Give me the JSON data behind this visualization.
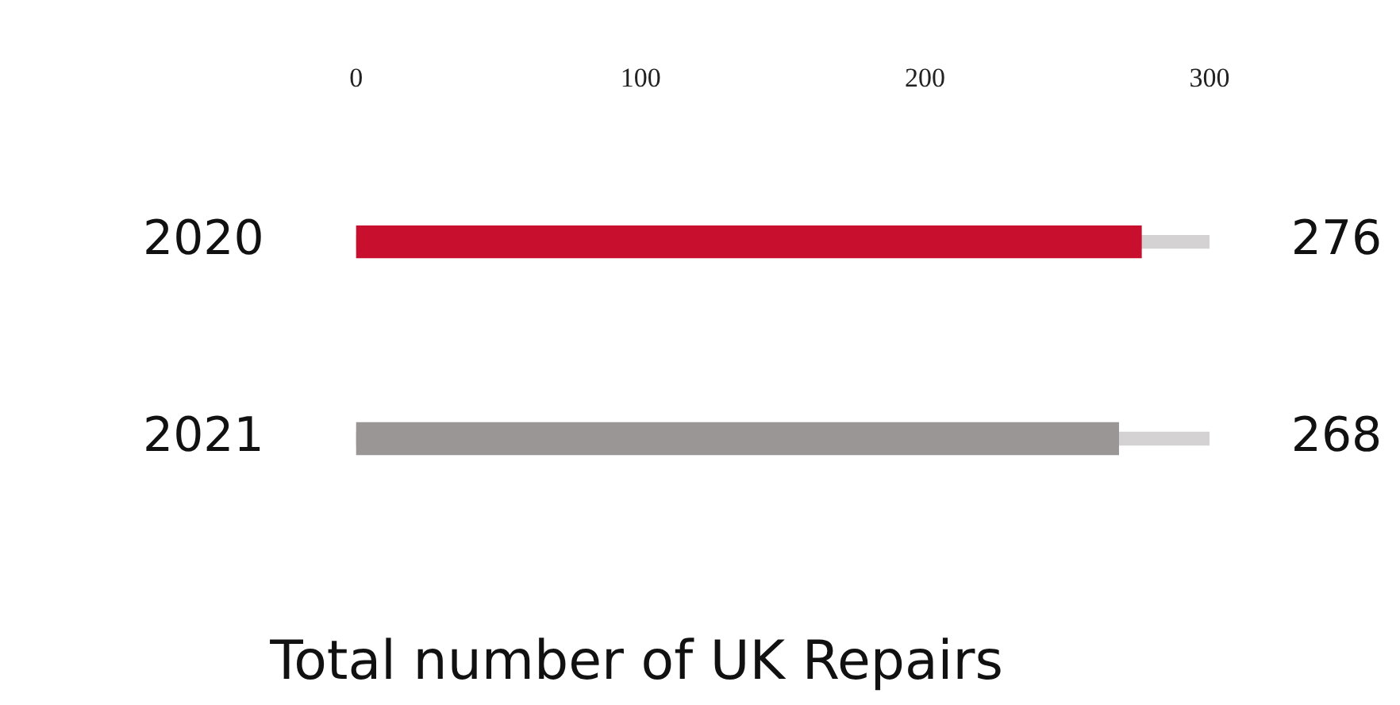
{
  "chart_data": {
    "type": "bar",
    "orientation": "horizontal",
    "title": "Total number of UK Repairs",
    "categories": [
      "2020",
      "2021"
    ],
    "series": [
      {
        "color": "#d4d2d2",
        "values": [
          300,
          300
        ]
      },
      {
        "colors": [
          "#c8102e",
          "#9b9696"
        ],
        "values": [
          276,
          268
        ],
        "value_labels": [
          "276",
          "268"
        ]
      }
    ],
    "xlim": [
      0,
      300
    ],
    "xticks": [
      0,
      100,
      200,
      300
    ],
    "grid": false,
    "legend": false
  }
}
